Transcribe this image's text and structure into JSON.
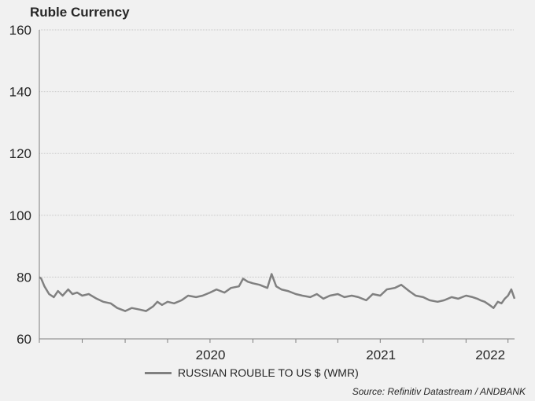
{
  "chart_data": {
    "type": "line",
    "title": "Ruble Currency",
    "source": "Source: Refinitiv Datastream / ANDBANK",
    "xlabel": "",
    "ylabel": "",
    "ylim": [
      60,
      160
    ],
    "yticks": [
      60,
      80,
      100,
      120,
      140,
      160
    ],
    "xlim": [
      "2019-07-01",
      "2022-04-15"
    ],
    "xtick_labels": [
      {
        "label": "2020",
        "x": "2020-01-01"
      },
      {
        "label": "2021",
        "x": "2021-01-01"
      },
      {
        "label": "2022",
        "x": "2022-01-01"
      }
    ],
    "grid": "horizontal",
    "legend": "bottom-center",
    "series": [
      {
        "name": "RUSSIAN ROUBLE TO US $ (WMR)",
        "color": "#808080",
        "points": [
          [
            "2019-07-01",
            80.0
          ],
          [
            "2019-07-05",
            79.5
          ],
          [
            "2019-07-12",
            77.0
          ],
          [
            "2019-07-22",
            74.5
          ],
          [
            "2019-08-01",
            73.5
          ],
          [
            "2019-08-10",
            75.5
          ],
          [
            "2019-08-20",
            74.0
          ],
          [
            "2019-09-01",
            76.0
          ],
          [
            "2019-09-10",
            74.5
          ],
          [
            "2019-09-20",
            75.0
          ],
          [
            "2019-10-01",
            74.0
          ],
          [
            "2019-10-15",
            74.5
          ],
          [
            "2019-11-01",
            73.0
          ],
          [
            "2019-11-15",
            72.0
          ],
          [
            "2019-12-01",
            71.5
          ],
          [
            "2019-12-15",
            70.0
          ],
          [
            "2020-01-01",
            69.0
          ],
          [
            "2020-01-15",
            70.0
          ],
          [
            "2020-02-01",
            69.5
          ],
          [
            "2020-02-15",
            69.0
          ],
          [
            "2020-03-01",
            70.5
          ],
          [
            "2020-03-10",
            72.0
          ],
          [
            "2020-03-20",
            71.0
          ],
          [
            "2020-04-01",
            72.0
          ],
          [
            "2020-04-15",
            71.5
          ],
          [
            "2020-05-01",
            72.5
          ],
          [
            "2020-05-15",
            74.0
          ],
          [
            "2020-06-01",
            73.5
          ],
          [
            "2020-06-15",
            74.0
          ],
          [
            "2020-07-01",
            75.0
          ],
          [
            "2020-07-15",
            76.0
          ],
          [
            "2020-08-01",
            75.0
          ],
          [
            "2020-08-15",
            76.5
          ],
          [
            "2020-09-01",
            77.0
          ],
          [
            "2020-09-10",
            79.5
          ],
          [
            "2020-09-20",
            78.5
          ],
          [
            "2020-10-01",
            78.0
          ],
          [
            "2020-10-15",
            77.5
          ],
          [
            "2020-11-01",
            76.5
          ],
          [
            "2020-11-10",
            81.0
          ],
          [
            "2020-11-20",
            77.0
          ],
          [
            "2020-12-01",
            76.0
          ],
          [
            "2020-12-15",
            75.5
          ],
          [
            "2021-01-01",
            74.5
          ],
          [
            "2021-01-15",
            74.0
          ],
          [
            "2021-02-01",
            73.5
          ],
          [
            "2021-02-15",
            74.5
          ],
          [
            "2021-03-01",
            73.0
          ],
          [
            "2021-03-15",
            74.0
          ],
          [
            "2021-04-01",
            74.5
          ],
          [
            "2021-04-15",
            73.5
          ],
          [
            "2021-05-01",
            74.0
          ],
          [
            "2021-05-15",
            73.5
          ],
          [
            "2021-06-01",
            72.5
          ],
          [
            "2021-06-15",
            74.5
          ],
          [
            "2021-07-01",
            74.0
          ],
          [
            "2021-07-15",
            76.0
          ],
          [
            "2021-08-01",
            76.5
          ],
          [
            "2021-08-15",
            77.5
          ],
          [
            "2021-09-01",
            75.5
          ],
          [
            "2021-09-15",
            74.0
          ],
          [
            "2021-10-01",
            73.5
          ],
          [
            "2021-10-15",
            72.5
          ],
          [
            "2021-11-01",
            72.0
          ],
          [
            "2021-11-15",
            72.5
          ],
          [
            "2021-12-01",
            73.5
          ],
          [
            "2021-12-15",
            73.0
          ],
          [
            "2022-01-01",
            74.0
          ],
          [
            "2022-01-15",
            73.5
          ],
          [
            "2022-01-25",
            73.0
          ],
          [
            "2022-02-01",
            72.5
          ],
          [
            "2022-02-10",
            72.0
          ],
          [
            "2022-02-20",
            71.0
          ],
          [
            "2022-03-01",
            70.0
          ],
          [
            "2022-03-10",
            72.0
          ],
          [
            "2022-03-18",
            71.5
          ],
          [
            "2022-03-25",
            73.0
          ],
          [
            "2022-04-01",
            74.0
          ],
          [
            "2022-04-08",
            76.0
          ],
          [
            "2022-04-15",
            73.0
          ]
        ]
      }
    ]
  }
}
